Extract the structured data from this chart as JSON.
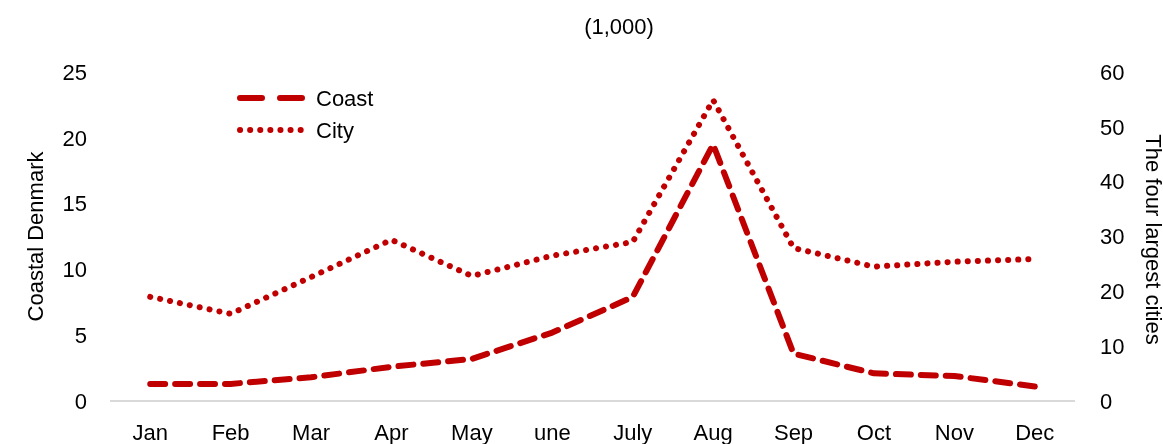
{
  "chart_data": {
    "type": "line",
    "subtitle": "(1,000)",
    "ylabel": "Coastal Denmark",
    "y2label": "The four largest cities",
    "categories": [
      "Jan",
      "Feb",
      "Mar",
      "Apr",
      "May",
      "une",
      "July",
      "Aug",
      "Sep",
      "Oct",
      "Nov",
      "Dec"
    ],
    "series": [
      {
        "name": "Coast",
        "color": "#c00000",
        "line_style": "dashed",
        "values": [
          1.3,
          1.3,
          1.8,
          2.6,
          3.2,
          5.2,
          7.9,
          19.5,
          3.6,
          2.1,
          1.9,
          1.1
        ]
      },
      {
        "name": "City",
        "color": "#c00000",
        "line_style": "dotted",
        "axis": "y2",
        "values": [
          19.0,
          15.9,
          22.6,
          29.4,
          22.8,
          26.5,
          29.0,
          54.9,
          27.9,
          24.5,
          25.4,
          25.9
        ]
      }
    ],
    "ylim": [
      0,
      25
    ],
    "yticks": [
      0,
      5,
      10,
      15,
      20,
      25
    ],
    "y2lim": [
      0,
      60
    ],
    "y2ticks": [
      0,
      10,
      20,
      30,
      40,
      50,
      60
    ],
    "legend": "top left",
    "grid": false
  }
}
